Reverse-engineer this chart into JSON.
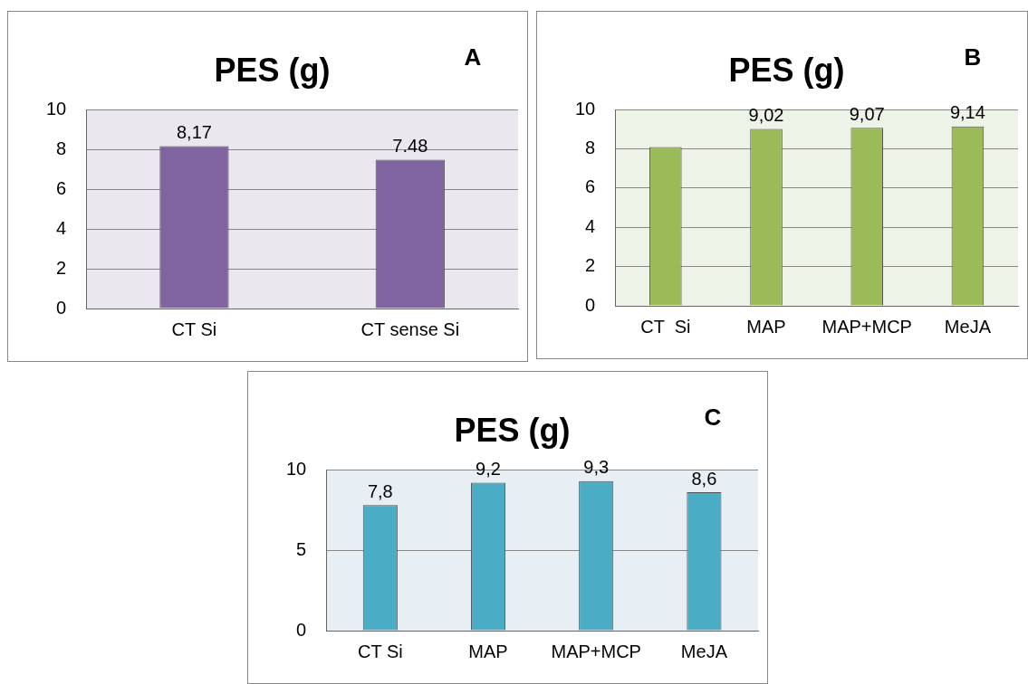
{
  "chart_data": [
    {
      "type": "bar",
      "title": "PES (g)",
      "annotations": [
        "A"
      ],
      "categories": [
        "CT Si",
        "CT sense Si"
      ],
      "values": [
        8.17,
        7.48
      ],
      "value_labels": [
        "8,17",
        "7.48"
      ],
      "color": "#8064a2",
      "ylim": [
        0,
        10
      ],
      "yticks": [
        0,
        2,
        4,
        6,
        8,
        10
      ],
      "grid": "y"
    },
    {
      "type": "bar",
      "title": "PES (g)",
      "annotations": [
        "B"
      ],
      "categories": [
        "CT  Si",
        "MAP",
        "MAP+MCP",
        "MeJA"
      ],
      "values": [
        8.1,
        9.02,
        9.07,
        9.14
      ],
      "value_labels": [
        null,
        "9,02",
        "9,07",
        "9,14"
      ],
      "color": "#9bbb59",
      "ylim": [
        0,
        10
      ],
      "yticks": [
        0,
        2,
        4,
        6,
        8,
        10
      ],
      "grid": "y"
    },
    {
      "type": "bar",
      "title": "PES (g)",
      "annotations": [
        "C"
      ],
      "categories": [
        "CT Si",
        "MAP",
        "MAP+MCP",
        "MeJA"
      ],
      "values": [
        7.8,
        9.2,
        9.3,
        8.6
      ],
      "value_labels": [
        "7,8",
        "9,2",
        "9,3",
        "8,6"
      ],
      "color": "#4bacc6",
      "ylim": [
        0,
        10
      ],
      "yticks": [
        0,
        5,
        10
      ],
      "grid": "y"
    }
  ]
}
